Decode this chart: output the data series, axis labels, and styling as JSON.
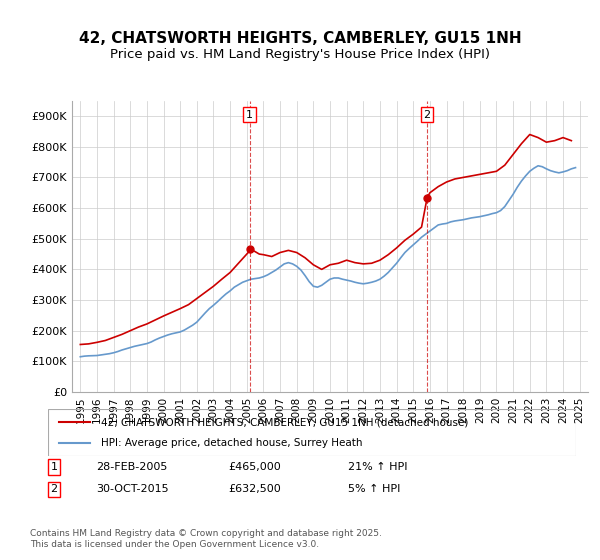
{
  "title": "42, CHATSWORTH HEIGHTS, CAMBERLEY, GU15 1NH",
  "subtitle": "Price paid vs. HM Land Registry's House Price Index (HPI)",
  "title_fontsize": 11,
  "subtitle_fontsize": 9.5,
  "background_color": "#ffffff",
  "plot_bg_color": "#ffffff",
  "grid_color": "#cccccc",
  "xlabel": "",
  "ylabel": "",
  "ylim": [
    0,
    950000
  ],
  "yticks": [
    0,
    100000,
    200000,
    300000,
    400000,
    500000,
    600000,
    700000,
    800000,
    900000
  ],
  "ytick_labels": [
    "£0",
    "£100K",
    "£200K",
    "£300K",
    "£400K",
    "£500K",
    "£600K",
    "£700K",
    "£800K",
    "£900K"
  ],
  "xlim_start": 1994.5,
  "xlim_end": 2025.5,
  "xticks": [
    1995,
    1996,
    1997,
    1998,
    1999,
    2000,
    2001,
    2002,
    2003,
    2004,
    2005,
    2006,
    2007,
    2008,
    2009,
    2010,
    2011,
    2012,
    2013,
    2014,
    2015,
    2016,
    2017,
    2018,
    2019,
    2020,
    2021,
    2022,
    2023,
    2024,
    2025
  ],
  "red_color": "#cc0000",
  "blue_color": "#6699cc",
  "marker1_x": 2005.17,
  "marker1_y": 465000,
  "marker2_x": 2015.83,
  "marker2_y": 632500,
  "marker1_label": "1",
  "marker2_label": "2",
  "vline1_x": 2005.17,
  "vline2_x": 2015.83,
  "legend_house": "42, CHATSWORTH HEIGHTS, CAMBERLEY, GU15 1NH (detached house)",
  "legend_hpi": "HPI: Average price, detached house, Surrey Heath",
  "annotation1": "1    28-FEB-2005         £465,000         21% ↑ HPI",
  "annotation2": "2    30-OCT-2015         £632,500           5% ↑ HPI",
  "footer": "Contains HM Land Registry data © Crown copyright and database right 2025.\nThis data is licensed under the Open Government Licence v3.0.",
  "hpi_data": {
    "years": [
      1995.0,
      1995.25,
      1995.5,
      1995.75,
      1996.0,
      1996.25,
      1996.5,
      1996.75,
      1997.0,
      1997.25,
      1997.5,
      1997.75,
      1998.0,
      1998.25,
      1998.5,
      1998.75,
      1999.0,
      1999.25,
      1999.5,
      1999.75,
      2000.0,
      2000.25,
      2000.5,
      2000.75,
      2001.0,
      2001.25,
      2001.5,
      2001.75,
      2002.0,
      2002.25,
      2002.5,
      2002.75,
      2003.0,
      2003.25,
      2003.5,
      2003.75,
      2004.0,
      2004.25,
      2004.5,
      2004.75,
      2005.0,
      2005.25,
      2005.5,
      2005.75,
      2006.0,
      2006.25,
      2006.5,
      2006.75,
      2007.0,
      2007.25,
      2007.5,
      2007.75,
      2008.0,
      2008.25,
      2008.5,
      2008.75,
      2009.0,
      2009.25,
      2009.5,
      2009.75,
      2010.0,
      2010.25,
      2010.5,
      2010.75,
      2011.0,
      2011.25,
      2011.5,
      2011.75,
      2012.0,
      2012.25,
      2012.5,
      2012.75,
      2013.0,
      2013.25,
      2013.5,
      2013.75,
      2014.0,
      2014.25,
      2014.5,
      2014.75,
      2015.0,
      2015.25,
      2015.5,
      2015.75,
      2016.0,
      2016.25,
      2016.5,
      2016.75,
      2017.0,
      2017.25,
      2017.5,
      2017.75,
      2018.0,
      2018.25,
      2018.5,
      2018.75,
      2019.0,
      2019.25,
      2019.5,
      2019.75,
      2020.0,
      2020.25,
      2020.5,
      2020.75,
      2021.0,
      2021.25,
      2021.5,
      2021.75,
      2022.0,
      2022.25,
      2022.5,
      2022.75,
      2023.0,
      2023.25,
      2023.5,
      2023.75,
      2024.0,
      2024.25,
      2024.5,
      2024.75
    ],
    "values": [
      115000,
      117000,
      118000,
      118500,
      119000,
      121000,
      123000,
      125000,
      128000,
      132000,
      137000,
      141000,
      145000,
      149000,
      152000,
      155000,
      158000,
      163000,
      170000,
      176000,
      181000,
      186000,
      190000,
      193000,
      196000,
      202000,
      210000,
      218000,
      228000,
      243000,
      258000,
      272000,
      283000,
      295000,
      308000,
      320000,
      330000,
      342000,
      350000,
      358000,
      363000,
      368000,
      370000,
      372000,
      376000,
      382000,
      390000,
      398000,
      408000,
      418000,
      422000,
      418000,
      410000,
      398000,
      380000,
      360000,
      345000,
      342000,
      348000,
      358000,
      368000,
      372000,
      372000,
      368000,
      365000,
      362000,
      358000,
      355000,
      353000,
      355000,
      358000,
      362000,
      368000,
      378000,
      390000,
      405000,
      420000,
      438000,
      455000,
      468000,
      480000,
      492000,
      505000,
      515000,
      525000,
      535000,
      545000,
      548000,
      550000,
      555000,
      558000,
      560000,
      562000,
      565000,
      568000,
      570000,
      572000,
      575000,
      578000,
      582000,
      585000,
      592000,
      605000,
      625000,
      645000,
      668000,
      688000,
      705000,
      720000,
      730000,
      738000,
      735000,
      728000,
      722000,
      718000,
      715000,
      718000,
      722000,
      728000,
      732000
    ]
  },
  "house_data": {
    "years": [
      1995.0,
      1995.5,
      1996.0,
      1996.5,
      1997.0,
      1997.5,
      1998.0,
      1998.5,
      1999.0,
      1999.5,
      2000.0,
      2000.5,
      2001.0,
      2001.5,
      2002.0,
      2002.5,
      2003.0,
      2003.5,
      2004.0,
      2004.5,
      2005.0,
      2005.25,
      2005.5,
      2005.75,
      2006.0,
      2006.5,
      2007.0,
      2007.5,
      2008.0,
      2008.5,
      2009.0,
      2009.5,
      2010.0,
      2010.5,
      2011.0,
      2011.5,
      2012.0,
      2012.5,
      2013.0,
      2013.5,
      2014.0,
      2014.5,
      2015.0,
      2015.5,
      2015.83,
      2016.0,
      2016.5,
      2017.0,
      2017.5,
      2018.0,
      2018.5,
      2019.0,
      2019.5,
      2020.0,
      2020.5,
      2021.0,
      2021.5,
      2022.0,
      2022.5,
      2023.0,
      2023.5,
      2024.0,
      2024.5
    ],
    "values": [
      155000,
      157000,
      162000,
      168000,
      178000,
      188000,
      200000,
      212000,
      222000,
      235000,
      248000,
      260000,
      272000,
      285000,
      305000,
      325000,
      345000,
      368000,
      390000,
      420000,
      450000,
      465000,
      458000,
      450000,
      448000,
      442000,
      455000,
      462000,
      455000,
      438000,
      415000,
      400000,
      415000,
      420000,
      430000,
      422000,
      418000,
      420000,
      430000,
      448000,
      470000,
      495000,
      515000,
      538000,
      632500,
      650000,
      670000,
      685000,
      695000,
      700000,
      705000,
      710000,
      715000,
      720000,
      740000,
      775000,
      810000,
      840000,
      830000,
      815000,
      820000,
      830000,
      820000
    ]
  }
}
